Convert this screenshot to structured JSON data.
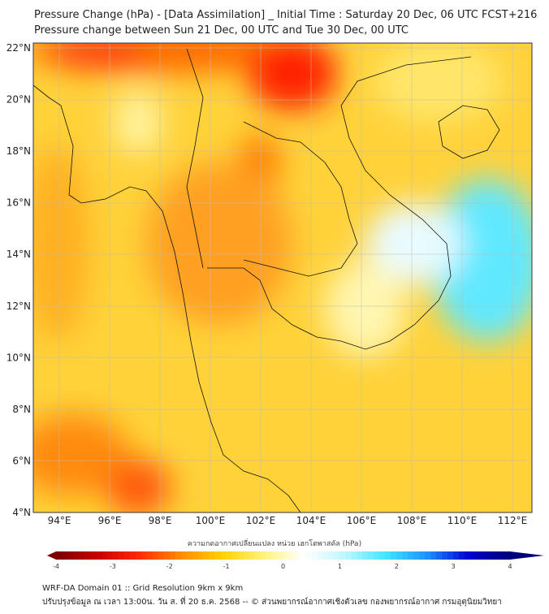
{
  "title": {
    "line1": "Pressure Change (hPa) - [Data Assimilation] _ Initial Time : Saturday 20 Dec, 06 UTC FCST+216",
    "line2": "Pressure change between Sun 21 Dec, 00 UTC and Tue 30 Dec, 00 UTC"
  },
  "axes": {
    "lat_labels": [
      "22°N",
      "20°N",
      "18°N",
      "16°N",
      "14°N",
      "12°N",
      "10°N",
      "8°N",
      "6°N",
      "4°N"
    ],
    "lat_values": [
      22,
      20,
      18,
      16,
      14,
      12,
      10,
      8,
      6,
      4
    ],
    "lon_labels": [
      "94°E",
      "96°E",
      "98°E",
      "100°E",
      "102°E",
      "104°E",
      "106°E",
      "108°E",
      "110°E",
      "112°E"
    ],
    "lon_values": [
      94,
      96,
      98,
      100,
      102,
      104,
      106,
      108,
      110,
      112
    ]
  },
  "colorbar": {
    "title": "ความกดอากาศเปลี่ยนแปลง หน่วย เฮกโตพาสคัล (hPa)",
    "tick_labels": [
      "-4",
      "-3",
      "-2",
      "-1",
      "0",
      "1",
      "2",
      "3",
      "4"
    ],
    "range": [
      -4,
      4
    ],
    "colors": [
      "#7a0000",
      "#c80000",
      "#ff2a00",
      "#ff8a00",
      "#ffd000",
      "#fff27a",
      "#ffffff",
      "#bff6ff",
      "#40e6ff",
      "#1e90ff",
      "#0000d0",
      "#00007a"
    ]
  },
  "footer": {
    "line1": "WRF-DA Domain 01 :: Grid Resolution 9km x 9km",
    "line2": "ปรับปรุงข้อมูล ณ เวลา 13:00น. วัน ส. ที่ 20 ธ.ค. 2568 -- © ส่วนพยากรณ์อากาศเชิงตัวเลข กองพยากรณ์อากาศ กรมอุตุนิยมวิทยา"
  }
}
